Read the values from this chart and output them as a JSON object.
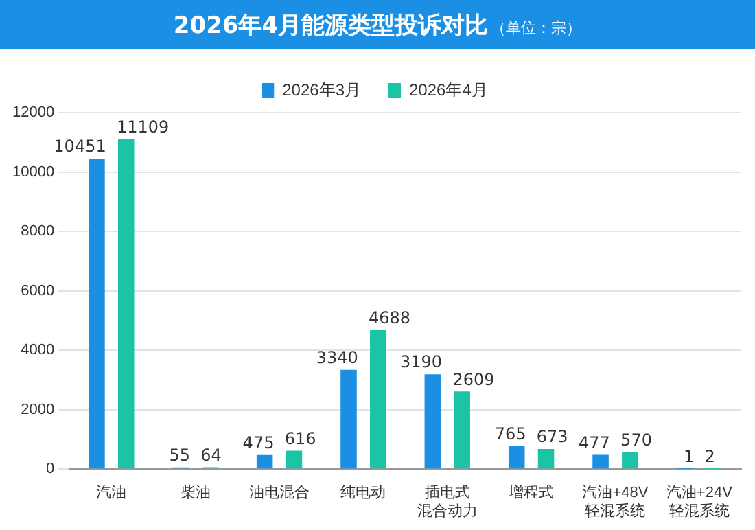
{
  "chart_data": {
    "type": "bar",
    "title": "2026年4月能源类型投诉对比",
    "subtitle": "（单位：宗）",
    "categories": [
      "汽油",
      "柴油",
      "油电混合",
      "纯电动",
      "插电式混合动力",
      "增程式",
      "汽油+48V轻混系统",
      "汽油+24V轻混系统"
    ],
    "series": [
      {
        "name": "2026年3月",
        "color": "#1a8fe3",
        "values": [
          10451,
          55,
          475,
          3340,
          3190,
          765,
          477,
          1
        ]
      },
      {
        "name": "2026年4月",
        "color": "#1cc4a6",
        "values": [
          11109,
          64,
          616,
          4688,
          2609,
          673,
          570,
          2
        ]
      }
    ],
    "ylim": [
      0,
      12000
    ],
    "yticks": [
      0,
      2000,
      4000,
      6000,
      8000,
      10000,
      12000
    ],
    "grid": "y",
    "legend": "top",
    "data_labels": true
  }
}
